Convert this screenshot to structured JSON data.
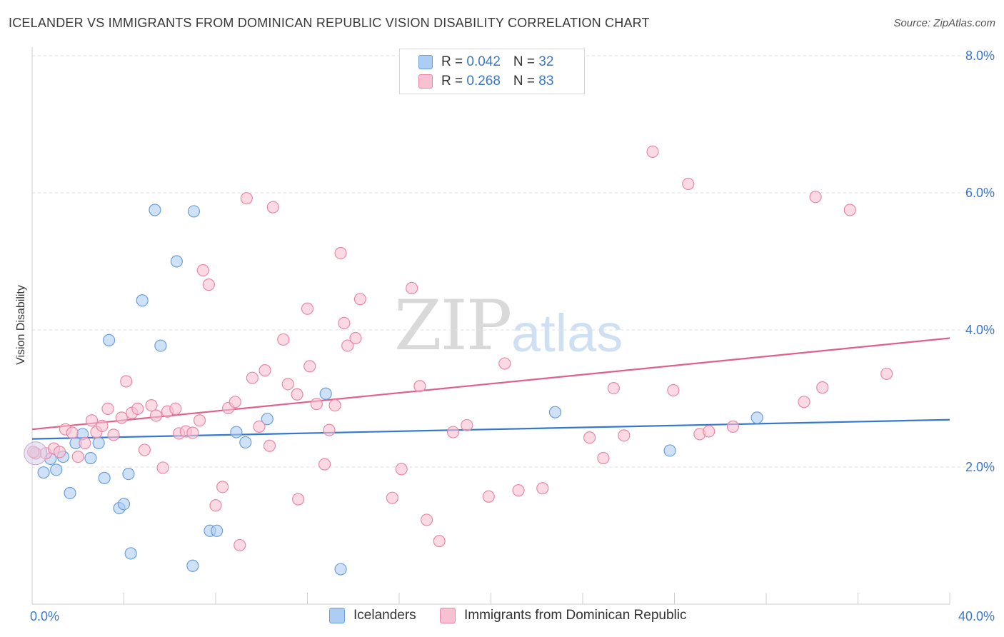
{
  "header": {
    "title": "ICELANDER VS IMMIGRANTS FROM DOMINICAN REPUBLIC VISION DISABILITY CORRELATION CHART",
    "source": "Source: ZipAtlas.com"
  },
  "watermark": {
    "zip": "ZIP",
    "atlas": "atlas"
  },
  "legend": {
    "rows": [
      {
        "r_label": "R = ",
        "r_value": "0.042",
        "n_label": "N = ",
        "n_value": "32",
        "color": "#aecdf2"
      },
      {
        "r_label": "R = ",
        "r_value": "0.268",
        "n_label": "N = ",
        "n_value": "83",
        "color": "#f8c1d2"
      }
    ]
  },
  "bottom_legend": {
    "items": [
      {
        "label": "Icelanders",
        "color": "#aecdf2"
      },
      {
        "label": "Immigrants from Dominican Republic",
        "color": "#f8c1d2"
      }
    ]
  },
  "chart_data": {
    "type": "scatter",
    "ylabel": "Vision Disability",
    "xlim": [
      0,
      40
    ],
    "ylim": [
      0,
      8
    ],
    "x_tick_labels": [
      {
        "value": 0,
        "label": "0.0%"
      },
      {
        "value": 40,
        "label": "40.0%"
      }
    ],
    "y_tick_labels": [
      {
        "value": 2,
        "label": "2.0%"
      },
      {
        "value": 4,
        "label": "4.0%"
      },
      {
        "value": 6,
        "label": "6.0%"
      },
      {
        "value": 8,
        "label": "8.0%"
      }
    ],
    "grid": true,
    "series": [
      {
        "name": "Icelanders",
        "color": "#aecdf2",
        "stroke": "#6a9fdc",
        "trend_color": "#3578d0",
        "trend": {
          "x": [
            0,
            40
          ],
          "y": [
            2.41,
            2.69
          ]
        },
        "points": [
          [
            0.15,
            2.2
          ],
          [
            0.5,
            1.92
          ],
          [
            0.8,
            2.12
          ],
          [
            1.05,
            1.96
          ],
          [
            1.35,
            2.15
          ],
          [
            1.65,
            1.62
          ],
          [
            1.9,
            2.35
          ],
          [
            2.2,
            2.48
          ],
          [
            2.55,
            2.13
          ],
          [
            2.9,
            2.35
          ],
          [
            3.15,
            1.84
          ],
          [
            3.35,
            3.85
          ],
          [
            3.8,
            1.4
          ],
          [
            4.0,
            1.46
          ],
          [
            4.2,
            1.9
          ],
          [
            4.3,
            0.74
          ],
          [
            4.8,
            4.43
          ],
          [
            5.35,
            5.75
          ],
          [
            5.6,
            3.77
          ],
          [
            6.3,
            5.0
          ],
          [
            7.0,
            0.56
          ],
          [
            7.05,
            5.73
          ],
          [
            7.75,
            1.07
          ],
          [
            8.05,
            1.07
          ],
          [
            8.9,
            2.51
          ],
          [
            9.3,
            2.36
          ],
          [
            10.25,
            2.7
          ],
          [
            12.8,
            3.07
          ],
          [
            13.45,
            0.51
          ],
          [
            22.8,
            2.8
          ],
          [
            27.8,
            2.24
          ],
          [
            31.6,
            2.72
          ]
        ]
      },
      {
        "name": "Immigrants from Dominican Republic",
        "color": "#f8c1d2",
        "stroke": "#e888a8",
        "trend_color": "#e0608a",
        "trend": {
          "x": [
            0,
            40
          ],
          "y": [
            2.55,
            3.88
          ]
        },
        "points": [
          [
            0.15,
            2.2
          ],
          [
            0.6,
            2.2
          ],
          [
            0.95,
            2.27
          ],
          [
            1.2,
            2.22
          ],
          [
            1.45,
            2.55
          ],
          [
            1.75,
            2.5
          ],
          [
            2.0,
            2.15
          ],
          [
            2.3,
            2.35
          ],
          [
            2.6,
            2.68
          ],
          [
            2.8,
            2.51
          ],
          [
            3.05,
            2.6
          ],
          [
            3.3,
            2.85
          ],
          [
            3.55,
            2.47
          ],
          [
            3.9,
            2.72
          ],
          [
            4.1,
            3.25
          ],
          [
            4.35,
            2.79
          ],
          [
            4.6,
            2.85
          ],
          [
            4.9,
            2.25
          ],
          [
            5.2,
            2.9
          ],
          [
            5.4,
            2.75
          ],
          [
            5.7,
            1.99
          ],
          [
            5.9,
            2.81
          ],
          [
            6.25,
            2.85
          ],
          [
            6.4,
            2.49
          ],
          [
            6.7,
            2.52
          ],
          [
            7.0,
            2.5
          ],
          [
            7.3,
            2.68
          ],
          [
            7.45,
            4.87
          ],
          [
            7.7,
            4.66
          ],
          [
            8.0,
            1.44
          ],
          [
            8.3,
            1.71
          ],
          [
            8.55,
            2.86
          ],
          [
            8.85,
            2.95
          ],
          [
            9.05,
            0.86
          ],
          [
            9.35,
            5.92
          ],
          [
            9.6,
            3.3
          ],
          [
            9.9,
            2.59
          ],
          [
            10.15,
            3.41
          ],
          [
            10.35,
            2.31
          ],
          [
            10.5,
            5.79
          ],
          [
            10.95,
            3.86
          ],
          [
            11.15,
            3.21
          ],
          [
            11.55,
            3.06
          ],
          [
            11.6,
            1.53
          ],
          [
            12.0,
            4.31
          ],
          [
            12.1,
            3.47
          ],
          [
            12.4,
            2.92
          ],
          [
            12.75,
            2.04
          ],
          [
            12.95,
            2.54
          ],
          [
            13.2,
            2.9
          ],
          [
            13.45,
            5.12
          ],
          [
            13.6,
            4.1
          ],
          [
            13.75,
            3.77
          ],
          [
            14.1,
            3.88
          ],
          [
            14.3,
            4.45
          ],
          [
            15.7,
            1.55
          ],
          [
            16.1,
            1.97
          ],
          [
            16.55,
            4.61
          ],
          [
            16.9,
            3.18
          ],
          [
            17.2,
            1.23
          ],
          [
            17.75,
            0.92
          ],
          [
            18.35,
            2.51
          ],
          [
            18.95,
            2.61
          ],
          [
            19.9,
            1.57
          ],
          [
            20.6,
            3.51
          ],
          [
            21.2,
            1.66
          ],
          [
            22.25,
            1.69
          ],
          [
            24.3,
            2.43
          ],
          [
            24.9,
            2.13
          ],
          [
            25.35,
            3.15
          ],
          [
            25.8,
            2.46
          ],
          [
            27.05,
            6.6
          ],
          [
            27.95,
            3.12
          ],
          [
            28.6,
            6.13
          ],
          [
            29.1,
            2.48
          ],
          [
            29.5,
            2.52
          ],
          [
            30.55,
            2.59
          ],
          [
            33.65,
            2.95
          ],
          [
            34.15,
            5.94
          ],
          [
            34.45,
            3.16
          ],
          [
            35.65,
            5.75
          ],
          [
            37.25,
            3.36
          ],
          [
            0.05,
            2.22
          ]
        ]
      }
    ]
  }
}
